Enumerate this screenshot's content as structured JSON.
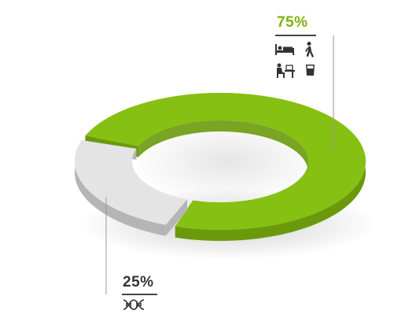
{
  "chart_data": {
    "type": "pie",
    "style": "3d-donut",
    "slices": [
      {
        "value": 75,
        "label": "75%",
        "color": "#86c013",
        "side_color": "#6a9a0c",
        "icons": [
          "bed-icon",
          "walking-person-icon",
          "person-at-desk-icon",
          "glass-of-water-icon"
        ]
      },
      {
        "value": 25,
        "label": "25%",
        "color": "#e4e4e4",
        "side_color": "#b5b5b5",
        "icons": [
          "dna-icon"
        ]
      }
    ],
    "legend": "none"
  },
  "colors": {
    "accent": "#86c013",
    "neutral": "#e4e4e4",
    "underline": "#444444",
    "leader_line": "#9a9a9a"
  }
}
